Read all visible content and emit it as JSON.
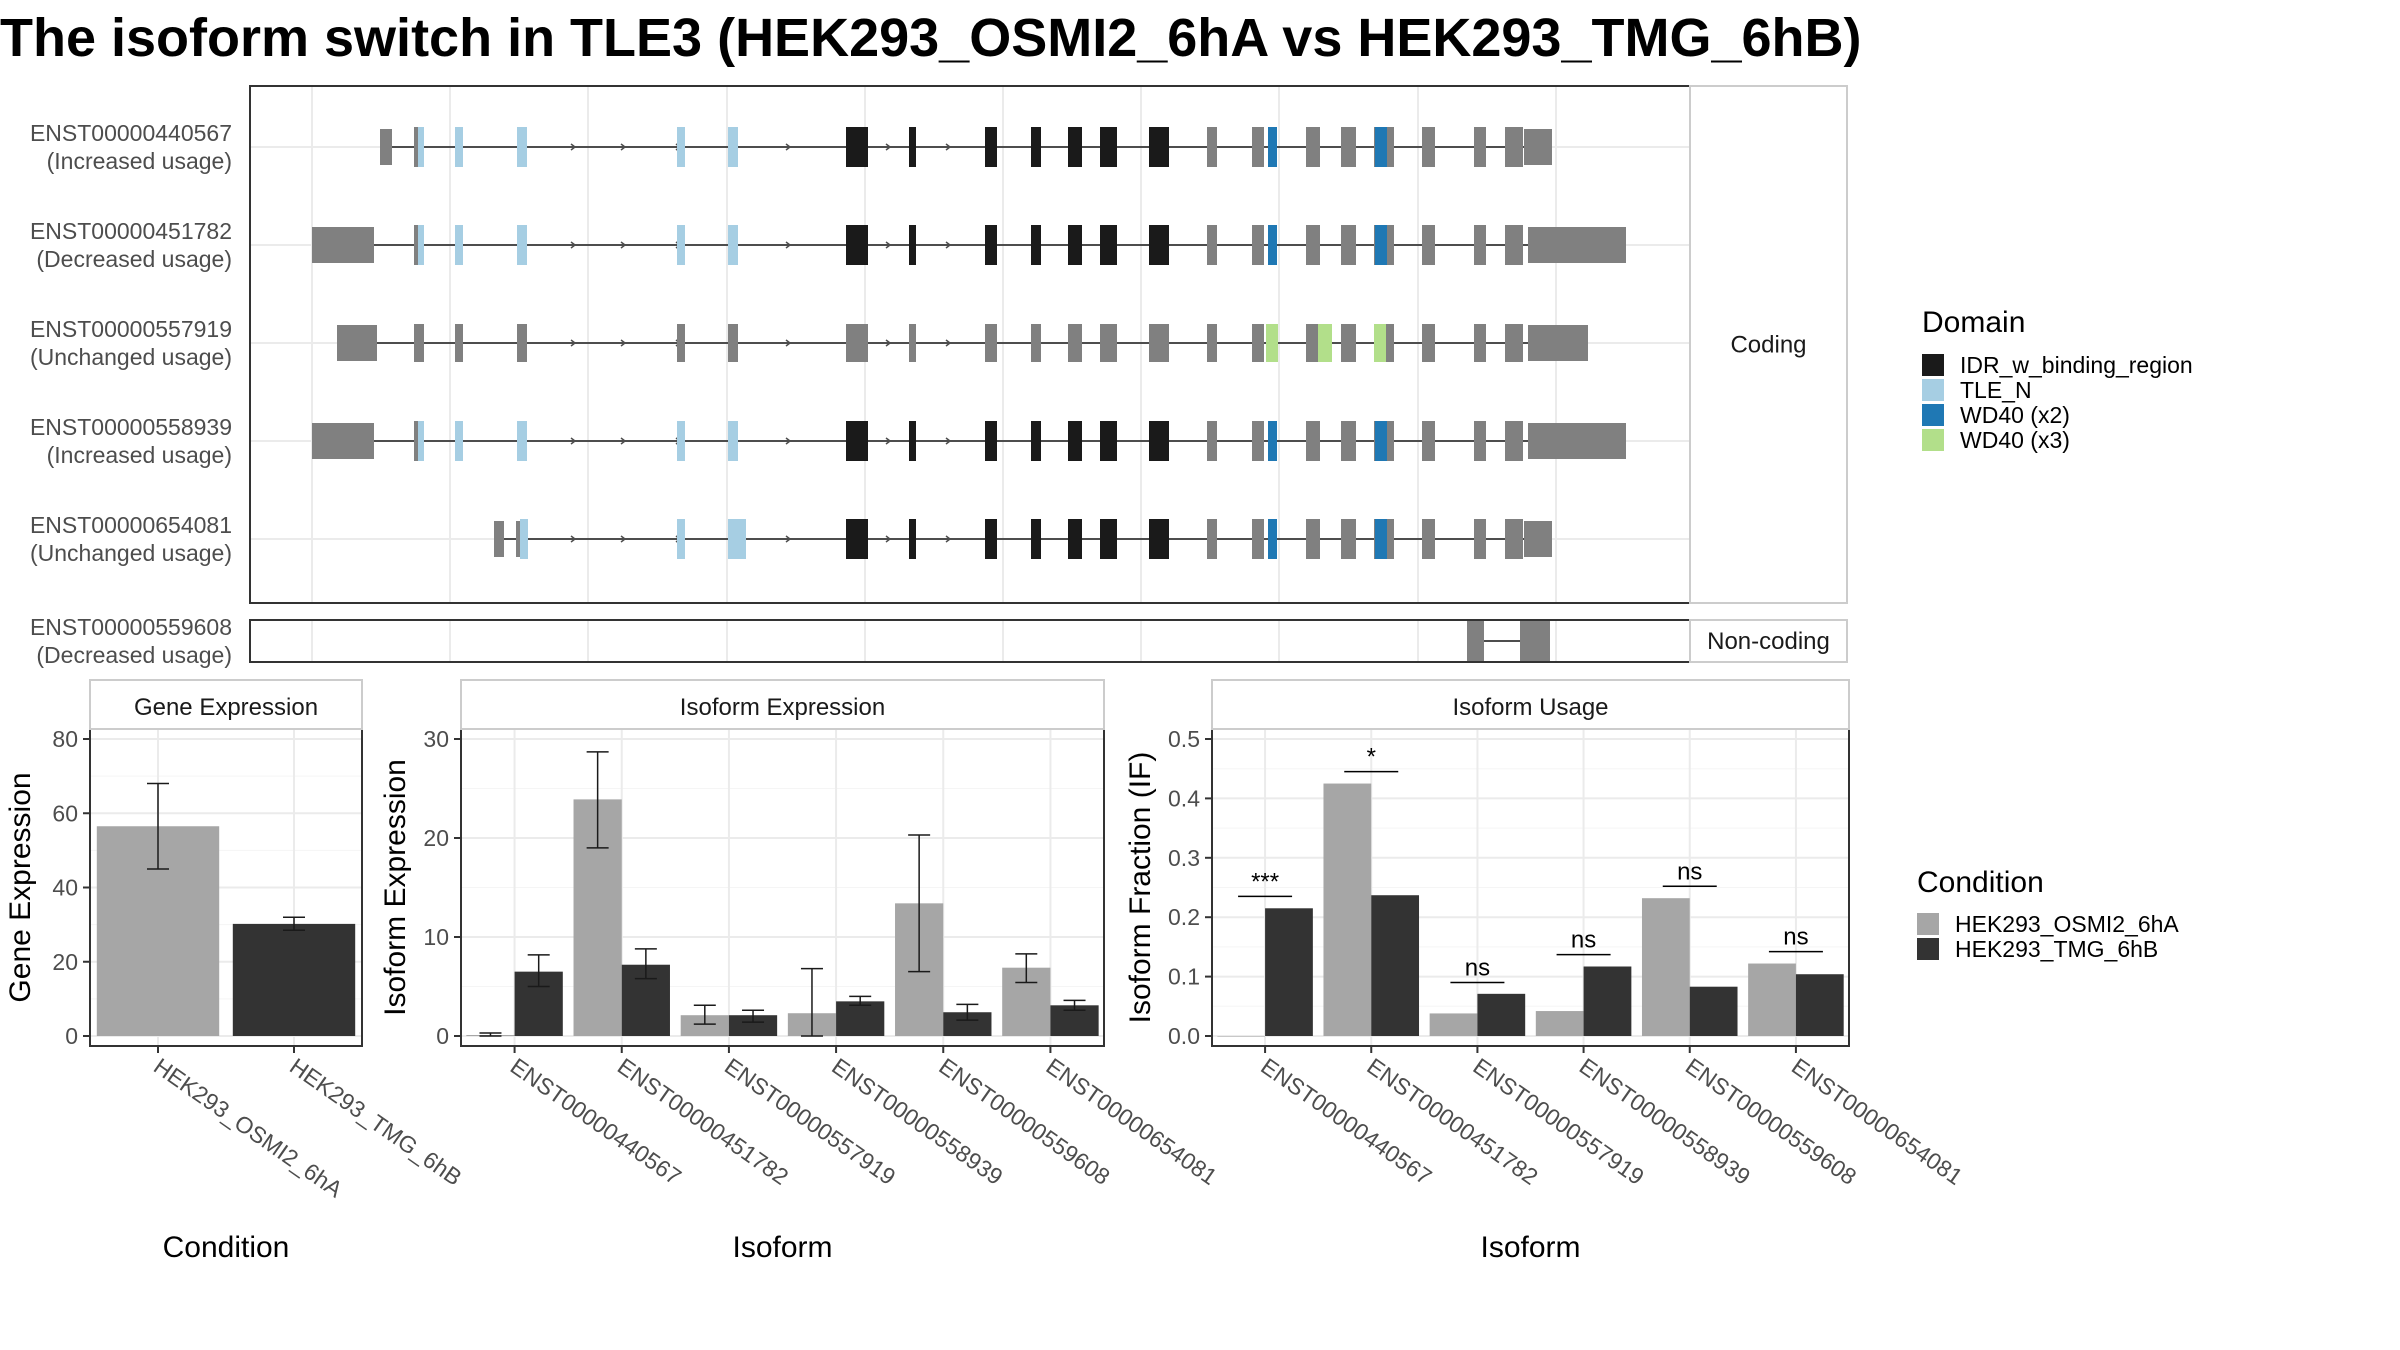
{
  "title": "The isoform switch in TLE3 (HEK293_OSMI2_6hA vs HEK293_TMG_6hB)",
  "colors": {
    "idr": "#1a1a1a",
    "tle_n": "#a6cee3",
    "wd40_x2": "#1f78b4",
    "wd40_x3": "#b2df8a",
    "exon": "#808080",
    "cond_a": "#a6a6a6",
    "cond_b": "#333333",
    "grid": "#ebebeb"
  },
  "transcripts": [
    {
      "id": "ENST00000440567",
      "usage": "(Increased usage)",
      "type": "coding",
      "pattern": "A"
    },
    {
      "id": "ENST00000451782",
      "usage": "(Decreased usage)",
      "type": "coding",
      "pattern": "A"
    },
    {
      "id": "ENST00000557919",
      "usage": "(Unchanged usage)",
      "type": "coding",
      "pattern": "B"
    },
    {
      "id": "ENST00000558939",
      "usage": "(Increased usage)",
      "type": "coding",
      "pattern": "A"
    },
    {
      "id": "ENST00000654081",
      "usage": "(Unchanged usage)",
      "type": "coding",
      "pattern": "C"
    },
    {
      "id": "ENST00000559608",
      "usage": "(Decreased usage)",
      "type": "noncoding",
      "pattern": "D"
    }
  ],
  "facets": {
    "coding": "Coding",
    "noncoding": "Non-coding"
  },
  "domain_legend": {
    "title": "Domain",
    "items": [
      {
        "label": "IDR_w_binding_region",
        "color_key": "idr"
      },
      {
        "label": "TLE_N",
        "color_key": "tle_n"
      },
      {
        "label": "WD40 (x2)",
        "color_key": "wd40_x2"
      },
      {
        "label": "WD40 (x3)",
        "color_key": "wd40_x3"
      }
    ]
  },
  "condition_legend": {
    "title": "Condition",
    "items": [
      {
        "label": "HEK293_OSMI2_6hA",
        "color_key": "cond_a"
      },
      {
        "label": "HEK293_TMG_6hB",
        "color_key": "cond_b"
      }
    ]
  },
  "chart_data": [
    {
      "type": "bar",
      "title": "Gene Expression",
      "xlabel": "Condition",
      "ylabel": "Gene Expression",
      "ylim": [
        0,
        80
      ],
      "yticks": [
        0,
        20,
        40,
        60,
        80
      ],
      "categories": [
        "HEK293_OSMI2_6hA",
        "HEK293_TMG_6hB"
      ],
      "values": [
        56.5,
        30.2
      ],
      "errors": [
        [
          45,
          68
        ],
        [
          28.5,
          32
        ]
      ]
    },
    {
      "type": "bar",
      "title": "Isoform Expression",
      "xlabel": "Isoform",
      "ylabel": "Isoform Expression",
      "ylim": [
        0,
        30
      ],
      "yticks": [
        0,
        10,
        20,
        30
      ],
      "categories": [
        "ENST00000440567",
        "ENST00000451782",
        "ENST00000557919",
        "ENST00000558939",
        "ENST00000559608",
        "ENST00000654081"
      ],
      "series": [
        {
          "name": "HEK293_OSMI2_6hA",
          "values": [
            0.1,
            23.9,
            2.1,
            2.3,
            13.4,
            6.9
          ],
          "errors": [
            [
              0,
              0.3
            ],
            [
              19,
              28.7
            ],
            [
              1.2,
              3.1
            ],
            [
              0,
              6.8
            ],
            [
              6.5,
              20.3
            ],
            [
              5.4,
              8.3
            ]
          ]
        },
        {
          "name": "HEK293_TMG_6hB",
          "values": [
            6.5,
            7.2,
            2.1,
            3.5,
            2.4,
            3.1
          ],
          "errors": [
            [
              5,
              8.2
            ],
            [
              5.8,
              8.8
            ],
            [
              1.4,
              2.6
            ],
            [
              3.1,
              4
            ],
            [
              1.6,
              3.2
            ],
            [
              2.6,
              3.6
            ]
          ]
        }
      ]
    },
    {
      "type": "bar",
      "title": "Isoform Usage",
      "xlabel": "Isoform",
      "ylabel": "Isoform Fraction (IF)",
      "ylim": [
        0,
        0.5
      ],
      "yticks": [
        0.0,
        0.1,
        0.2,
        0.3,
        0.4,
        0.5
      ],
      "categories": [
        "ENST00000440567",
        "ENST00000451782",
        "ENST00000557919",
        "ENST00000558939",
        "ENST00000559608",
        "ENST00000654081"
      ],
      "series": [
        {
          "name": "HEK293_OSMI2_6hA",
          "values": [
            0.0,
            0.425,
            0.038,
            0.042,
            0.232,
            0.122
          ]
        },
        {
          "name": "HEK293_TMG_6hB",
          "values": [
            0.215,
            0.237,
            0.071,
            0.117,
            0.083,
            0.104
          ]
        }
      ],
      "significance": [
        "***",
        "*",
        "ns",
        "ns",
        "ns",
        "ns"
      ],
      "significance_y": [
        0.235,
        0.445,
        0.09,
        0.137,
        0.252,
        0.142
      ]
    }
  ]
}
